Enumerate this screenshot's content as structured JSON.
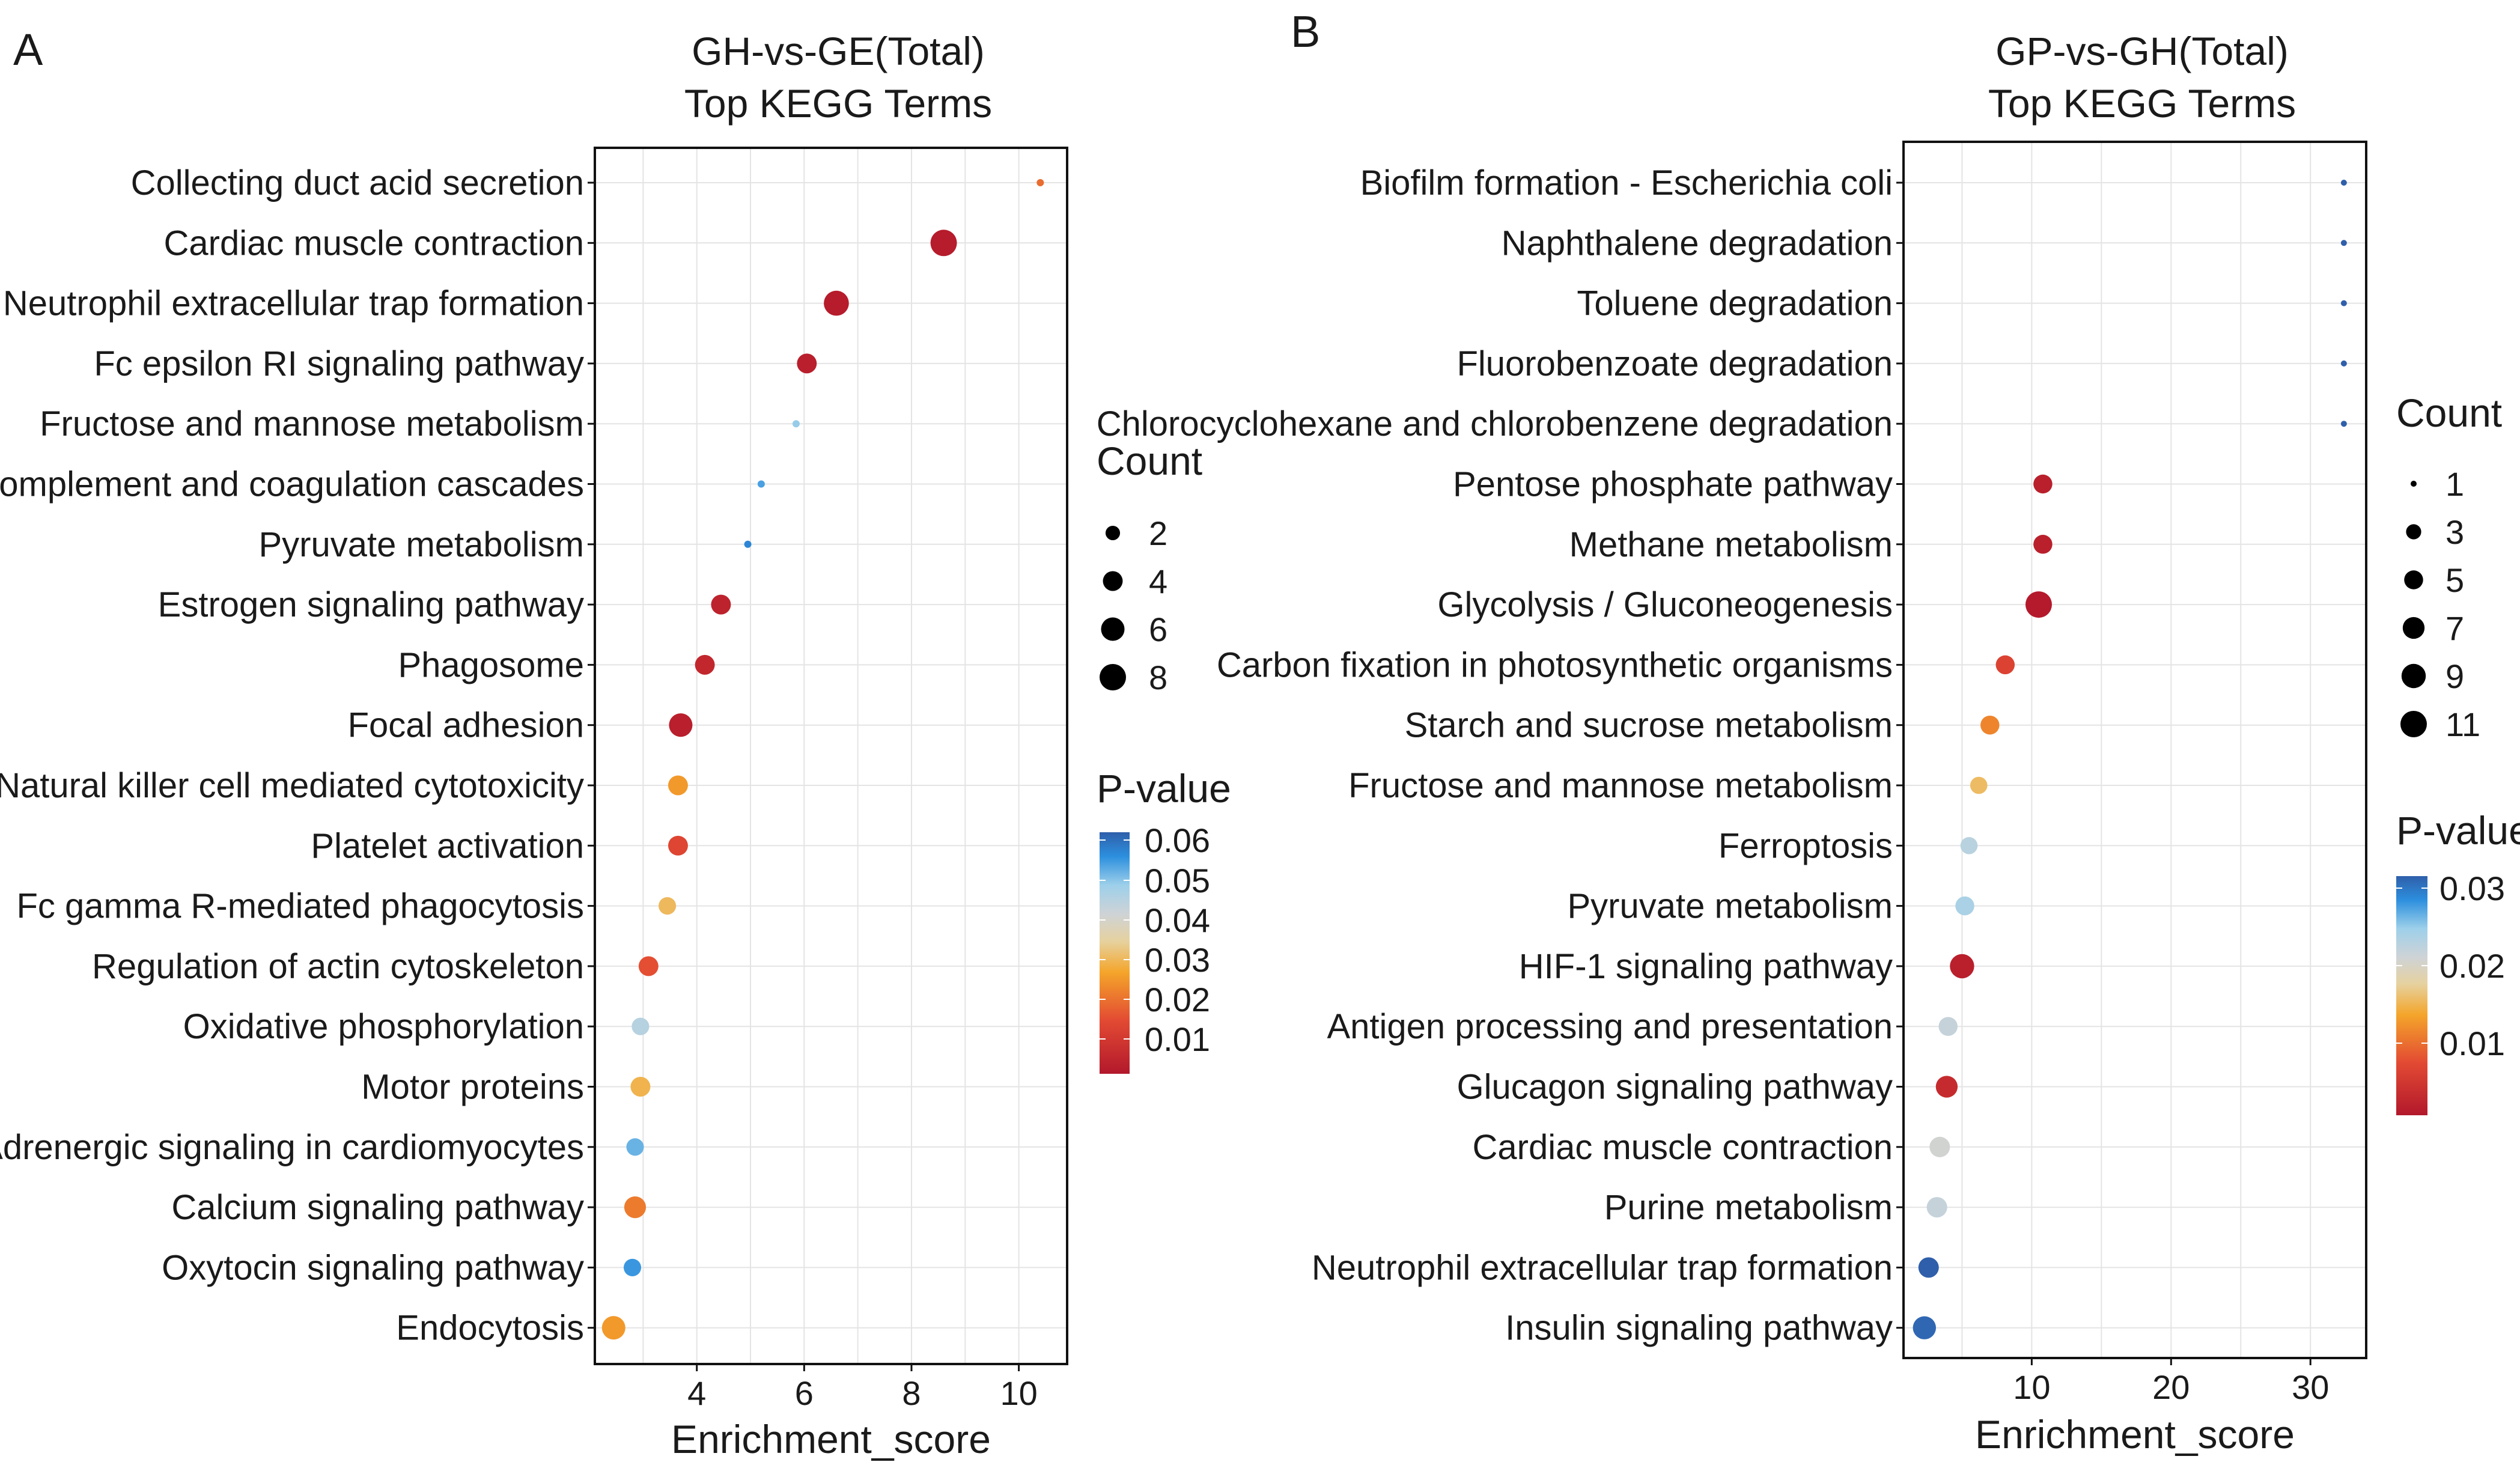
{
  "chart_data": [
    {
      "panel": "A",
      "type": "scatter",
      "title": "GH-vs-GE(Total)",
      "subtitle": "Top KEGG Terms",
      "xlabel": "Enrichment_score",
      "xticks": [
        4,
        6,
        8,
        10
      ],
      "xlim": [
        2.1,
        10.9
      ],
      "points": [
        {
          "term": "Collecting duct acid secretion",
          "x": 10.4,
          "count": 1,
          "p": 0.02
        },
        {
          "term": "Cardiac muscle contraction",
          "x": 8.6,
          "count": 8,
          "p": 0.003
        },
        {
          "term": "Neutrophil extracellular trap formation",
          "x": 6.6,
          "count": 7,
          "p": 0.003
        },
        {
          "term": "Fc epsilon RI signaling pathway",
          "x": 6.05,
          "count": 4,
          "p": 0.004
        },
        {
          "term": "Fructose and mannose metabolism",
          "x": 5.85,
          "count": 1,
          "p": 0.05
        },
        {
          "term": "Complement and coagulation cascades",
          "x": 5.2,
          "count": 1,
          "p": 0.055
        },
        {
          "term": "Pyruvate metabolism",
          "x": 4.95,
          "count": 1,
          "p": 0.058
        },
        {
          "term": "Estrogen signaling pathway",
          "x": 4.45,
          "count": 4,
          "p": 0.005
        },
        {
          "term": "Phagosome",
          "x": 4.15,
          "count": 4,
          "p": 0.006
        },
        {
          "term": "Focal adhesion",
          "x": 3.7,
          "count": 6,
          "p": 0.004
        },
        {
          "term": "Natural killer cell mediated cytotoxicity",
          "x": 3.65,
          "count": 4,
          "p": 0.026
        },
        {
          "term": "Platelet activation",
          "x": 3.65,
          "count": 4,
          "p": 0.014
        },
        {
          "term": "Fc gamma R-mediated phagocytosis",
          "x": 3.45,
          "count": 3,
          "p": 0.031
        },
        {
          "term": "Regulation of actin cytoskeleton",
          "x": 3.1,
          "count": 4,
          "p": 0.016
        },
        {
          "term": "Oxidative phosphorylation",
          "x": 2.95,
          "count": 3,
          "p": 0.046
        },
        {
          "term": "Motor proteins",
          "x": 2.95,
          "count": 4,
          "p": 0.03
        },
        {
          "term": "Adrenergic signaling in cardiomyocytes",
          "x": 2.85,
          "count": 3,
          "p": 0.053
        },
        {
          "term": "Calcium signaling pathway",
          "x": 2.85,
          "count": 5,
          "p": 0.022
        },
        {
          "term": "Oxytocin signaling pathway",
          "x": 2.8,
          "count": 3,
          "p": 0.056
        },
        {
          "term": "Endocytosis",
          "x": 2.45,
          "count": 6,
          "p": 0.026
        }
      ],
      "size_legend": {
        "title": "Count",
        "values": [
          2,
          4,
          6,
          8
        ],
        "range": [
          1,
          8
        ]
      },
      "color_legend": {
        "title": "P-value",
        "ticks": [
          "0.06",
          "0.05",
          "0.04",
          "0.03",
          "0.02",
          "0.01"
        ],
        "min": 0.002,
        "max": 0.063
      }
    },
    {
      "panel": "B",
      "type": "scatter",
      "title": "GP-vs-GH(Total)",
      "subtitle": "Top KEGG Terms",
      "xlabel": "Enrichment_score",
      "xticks": [
        10,
        20,
        30
      ],
      "xlim": [
        0.8,
        34.0
      ],
      "points": [
        {
          "term": "Biofilm formation - Escherichia coli",
          "x": 32.4,
          "count": 1,
          "p": 0.031
        },
        {
          "term": "Naphthalene degradation",
          "x": 32.4,
          "count": 1,
          "p": 0.031
        },
        {
          "term": "Toluene degradation",
          "x": 32.4,
          "count": 1,
          "p": 0.031
        },
        {
          "term": "Fluorobenzoate degradation",
          "x": 32.4,
          "count": 1,
          "p": 0.031
        },
        {
          "term": "Chlorocyclohexane and chlorobenzene degradation",
          "x": 32.4,
          "count": 1,
          "p": 0.031
        },
        {
          "term": "Pentose phosphate pathway",
          "x": 10.8,
          "count": 5,
          "p": 0.0015
        },
        {
          "term": "Methane metabolism",
          "x": 10.8,
          "count": 5,
          "p": 0.0015
        },
        {
          "term": "Glycolysis / Gluconeogenesis",
          "x": 10.5,
          "count": 11,
          "p": 0.0008
        },
        {
          "term": "Carbon fixation in photosynthetic organisms",
          "x": 8.1,
          "count": 5,
          "p": 0.006
        },
        {
          "term": "Starch and sucrose metabolism",
          "x": 7.0,
          "count": 5,
          "p": 0.011
        },
        {
          "term": "Fructose and mannose metabolism",
          "x": 6.2,
          "count": 4,
          "p": 0.015
        },
        {
          "term": "Ferroptosis",
          "x": 5.5,
          "count": 4,
          "p": 0.022
        },
        {
          "term": "Pyruvate metabolism",
          "x": 5.2,
          "count": 5,
          "p": 0.023
        },
        {
          "term": "HIF-1 signaling pathway",
          "x": 5.0,
          "count": 9,
          "p": 0.0015
        },
        {
          "term": "Antigen processing and presentation",
          "x": 4.0,
          "count": 5,
          "p": 0.021
        },
        {
          "term": "Glucagon signaling pathway",
          "x": 3.9,
          "count": 7,
          "p": 0.003
        },
        {
          "term": "Cardiac muscle contraction",
          "x": 3.4,
          "count": 6,
          "p": 0.02
        },
        {
          "term": "Purine metabolism",
          "x": 3.2,
          "count": 6,
          "p": 0.021
        },
        {
          "term": "Neutrophil extracellular trap formation",
          "x": 2.6,
          "count": 6,
          "p": 0.033
        },
        {
          "term": "Insulin signaling pathway",
          "x": 2.3,
          "count": 8,
          "p": 0.03
        }
      ],
      "size_legend": {
        "title": "Count",
        "values": [
          1,
          3,
          5,
          7,
          9,
          11
        ],
        "range": [
          1,
          11
        ]
      },
      "color_legend": {
        "title": "P-value",
        "ticks": [
          "0.03",
          "0.02",
          "0.01"
        ],
        "min": 0.0005,
        "max": 0.0305
      }
    }
  ]
}
